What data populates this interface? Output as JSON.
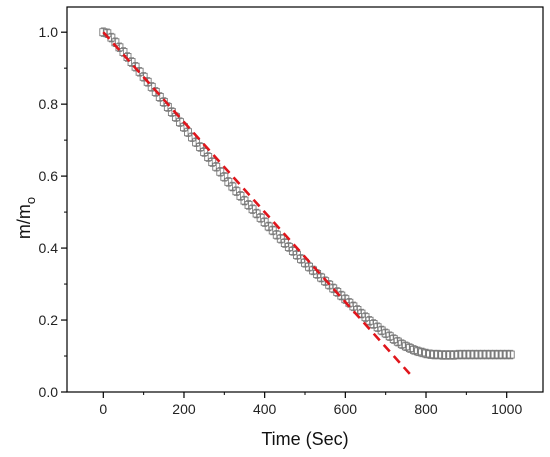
{
  "chart_data": {
    "type": "scatter",
    "xlabel": "Time (Sec)",
    "ylabel": {
      "main": "m/m",
      "sub": "o"
    },
    "xlim": [
      -90,
      1090
    ],
    "ylim": [
      0.0,
      1.07
    ],
    "xticks": [
      0,
      200,
      400,
      600,
      800,
      1000
    ],
    "yticks": [
      0.0,
      0.2,
      0.4,
      0.6,
      0.8,
      1.0
    ],
    "xtick_labels": [
      "0",
      "200",
      "400",
      "600",
      "800",
      "1000"
    ],
    "ytick_labels": [
      "0.0",
      "0.2",
      "0.4",
      "0.6",
      "0.8",
      "1.0"
    ],
    "grid": false,
    "legend": "none",
    "series": [
      {
        "marker": "open-square",
        "color": "#7a7a7a",
        "x_start": 0,
        "x_step": 10,
        "error_bar": 0.012,
        "values": [
          1.0,
          0.997,
          0.985,
          0.972,
          0.958,
          0.945,
          0.931,
          0.917,
          0.904,
          0.89,
          0.876,
          0.862,
          0.848,
          0.834,
          0.82,
          0.806,
          0.792,
          0.778,
          0.764,
          0.75,
          0.736,
          0.722,
          0.708,
          0.694,
          0.681,
          0.667,
          0.653,
          0.639,
          0.626,
          0.612,
          0.598,
          0.584,
          0.571,
          0.558,
          0.545,
          0.532,
          0.52,
          0.508,
          0.496,
          0.484,
          0.472,
          0.46,
          0.449,
          0.437,
          0.426,
          0.414,
          0.403,
          0.392,
          0.381,
          0.37,
          0.359,
          0.348,
          0.338,
          0.328,
          0.318,
          0.308,
          0.298,
          0.288,
          0.278,
          0.268,
          0.258,
          0.248,
          0.238,
          0.228,
          0.218,
          0.208,
          0.198,
          0.189,
          0.18,
          0.171,
          0.163,
          0.155,
          0.147,
          0.14,
          0.133,
          0.127,
          0.122,
          0.117,
          0.113,
          0.11,
          0.107,
          0.105,
          0.104,
          0.104,
          0.103,
          0.103,
          0.103,
          0.103,
          0.104,
          0.104,
          0.104,
          0.104,
          0.104,
          0.104,
          0.104,
          0.104,
          0.104,
          0.104,
          0.104,
          0.104,
          0.104,
          0.104
        ]
      },
      {
        "type": "line",
        "style": "dashed",
        "color": "#e0161c",
        "x": [
          0,
          760
        ],
        "values": [
          1.0,
          0.05
        ]
      }
    ]
  }
}
